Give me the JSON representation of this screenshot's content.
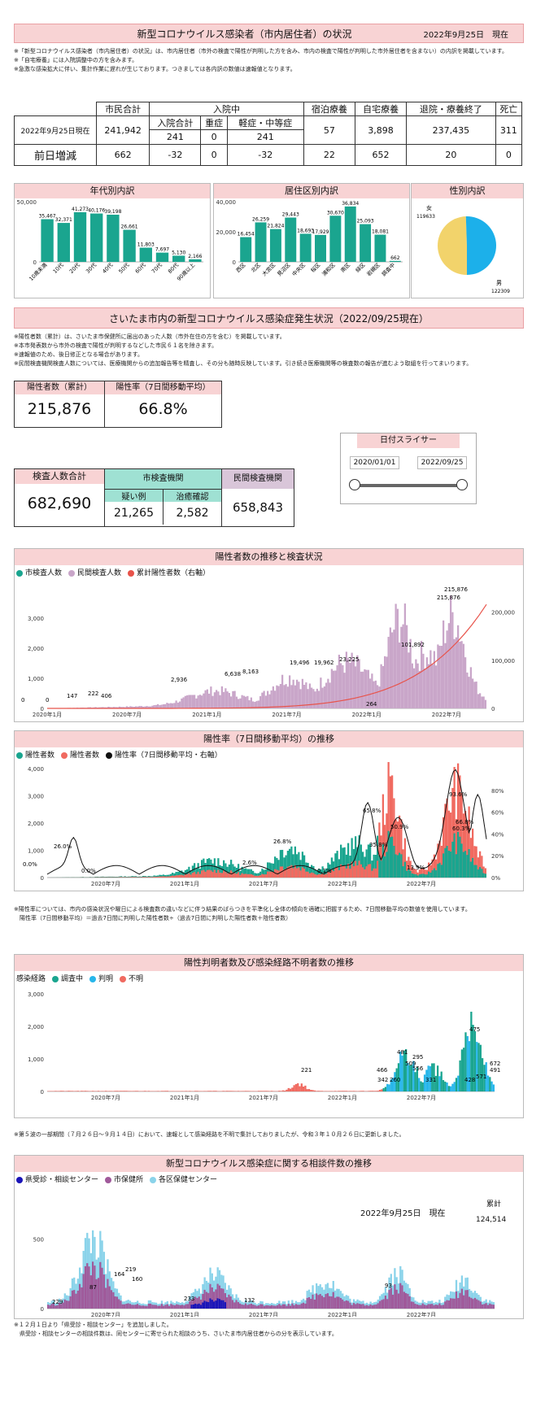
{
  "header": {
    "title": "新型コロナウイルス感染者（市内居住者）の状況",
    "date": "2022年9月25日　現在",
    "notes": [
      "※「新型コロナウイルス感染者（市内居住者）の状況」は、市内居住者（市外の検査で陽性が判明した方を含み、市内の検査で陽性が判明した市外居住者を含まない）の内訳を掲載しています。",
      "※「自宅療養」には入院調整中の方を含みます。",
      "※急激な感染拡大に伴い、集計作業に遅れが生じております。つきましては各内訳の数値は速報値となります。"
    ]
  },
  "stats": {
    "headers": {
      "citizen_total": "市民合計",
      "hospitalized": "入院中",
      "hosp_total": "入院合計",
      "severe": "重症",
      "mild": "軽症・中等症",
      "hotel": "宿泊療養",
      "home": "自宅療養",
      "discharged": "退院・療養終了",
      "death": "死亡"
    },
    "row_label": "2022年9月25日現在",
    "row_values": {
      "citizen_total": "241,942",
      "hosp_total": "241",
      "severe": "0",
      "mild": "241",
      "hotel": "57",
      "home": "3,898",
      "discharged": "237,435",
      "death": "311"
    },
    "diff_label": "前日増減",
    "diff_values": {
      "citizen_total": "662",
      "hosp_total": "-32",
      "severe": "0",
      "mild": "-32",
      "hotel": "22",
      "home": "652",
      "discharged": "20",
      "death": "0"
    }
  },
  "age_panel": {
    "title": "年代別内訳",
    "yticks": [
      "50,000",
      "0"
    ]
  },
  "ward_panel": {
    "title": "居住区別内訳",
    "yticks": [
      "40,000",
      "20,000",
      "0"
    ]
  },
  "gender_panel": {
    "title": "性別内訳",
    "female_label": "女",
    "female_value": "119633",
    "male_label": "男",
    "male_value": "122309"
  },
  "section2": {
    "title": "さいたま市内の新型コロナウイルス感染症発生状況（2022/09/25現在）",
    "notes": [
      "※陽性者数（累計）は、さいたま市保健所に届出のあった人数（市外在住の方を含む）を掲載しています。",
      "※本市発表数から市外の検査で陽性が判明するなどした市民６１名を除きます。",
      "※速報値のため、後日修正となる場合があります。",
      "※民間検査機関検査人数については、医療機関からの追加報告等を精査し、その分も随時反映しています。引き続き医療機関等の検査数の報告が進むよう取組を行ってまいります。"
    ]
  },
  "kpi": {
    "positives_label": "陽性者数（累計）",
    "positives": "215,876",
    "rate_label": "陽性率（7日間移動平均）",
    "rate": "66.8%",
    "tests_label": "検査人数合計",
    "tests": "682,690",
    "city_label": "市検査機関",
    "suspect_label": "疑い例",
    "suspect": "21,265",
    "confirm_label": "治癒確認",
    "confirm": "2,582",
    "private_label": "民間検査機関",
    "private": "658,843"
  },
  "slider": {
    "title": "日付スライサー",
    "start": "2020/01/01",
    "end": "2022/09/25"
  },
  "chart1_header": {
    "title": "陽性者数の推移と検査状況",
    "legend": [
      "市検査人数",
      "民間検査人数",
      "累計陽性者数（右軸）"
    ]
  },
  "chart2_header": {
    "title": "陽性率（7日間移動平均）の推移",
    "legend": [
      "陽性者数",
      "陽性者数",
      "陽性率（7日間移動平均・右軸）"
    ]
  },
  "chart2_notes": [
    "※陽性率については、市内の感染状況や曜日による検査数の違いなどに伴う結果のばらつきを平準化し全体の傾向を適確に把握するため、7日間移動平均の数値を使用しています。",
    "　陽性率（7日間移動平均）＝過去7日間に判明した陽性者数÷（過去7日間に判明した陽性者数＋陰性者数）"
  ],
  "chart3_header": {
    "title": "陽性判明者数及び感染経路不明者数の推移",
    "legend_prefix": "感染経路",
    "legend": [
      "調査中",
      "判明",
      "不明"
    ]
  },
  "chart3_notes": [
    "※第５波の一部期間（７月２６日～９月１４日）において、速報として感染経路を不明で集計しておりましたが、令和３年１０月２６日に更新しました。"
  ],
  "chart4_header": {
    "title": "新型コロナウイルス感染症に関する相談件数の推移",
    "legend": [
      "県受診・相談センター",
      "市保健所",
      "各区保健センター"
    ],
    "date": "2022年9月25日　現在",
    "total_label": "累計",
    "total": "124,514"
  },
  "chart4_notes": [
    "※１２月１日より「県受診・相談センター」を追加しました。",
    "　県受診・相談センターの相談件数は、同センターに寄せられた相談のうち、さいたま市内居住者からの分を表示しています。"
  ],
  "chart_data": [
    {
      "type": "bar",
      "title": "年代別内訳",
      "categories": [
        "10歳未満",
        "10代",
        "20代",
        "30代",
        "40代",
        "50代",
        "60代",
        "70代",
        "80代",
        "90歳以上"
      ],
      "values": [
        35467,
        32371,
        41273,
        40176,
        39198,
        26661,
        11803,
        7697,
        5130,
        2166
      ],
      "ylim": [
        0,
        50000
      ],
      "color": "#1aa58f",
      "category_labels": [
        "10歳未満",
        "10代",
        "20代",
        "30代",
        "40代",
        "50代",
        "60代",
        "70代",
        "80代",
        "90歳以上"
      ]
    },
    {
      "type": "bar",
      "title": "居住区別内訳",
      "categories": [
        "西区",
        "北区",
        "大宮区",
        "見沼区",
        "中央区",
        "桜区",
        "浦和区",
        "南区",
        "緑区",
        "岩槻区",
        "調査中"
      ],
      "values": [
        16454,
        26259,
        21824,
        29443,
        18693,
        17929,
        30670,
        36834,
        25093,
        18081,
        662
      ],
      "ylim": [
        0,
        40000
      ],
      "color": "#1aa58f"
    },
    {
      "type": "pie",
      "title": "性別内訳",
      "categories": [
        "女",
        "男"
      ],
      "values": [
        119633,
        122309
      ],
      "colors": [
        "#f2d36b",
        "#1cb0ea"
      ]
    },
    {
      "type": "bar",
      "title": "陽性者数の推移と検査状況",
      "x_ticks": [
        "2020年1月",
        "2020年7月",
        "2021年1月",
        "2021年7月",
        "2022年1月",
        "2022年7月"
      ],
      "y_left": [
        0,
        1000,
        2000,
        3000,
        4000
      ],
      "y_right": [
        0,
        100000,
        200000
      ],
      "y_left_ticks": [
        "0",
        "1,000",
        "2,000",
        "3,000"
      ],
      "y_right_ticks": [
        "0",
        "100,000",
        "200,000"
      ],
      "series": [
        {
          "name": "市検査人数",
          "color": "#1aa58f"
        },
        {
          "name": "民間検査人数",
          "color": "#c9a6c9"
        },
        {
          "name": "累計陽性者数（右軸）",
          "color": "#e8534a",
          "cumulative_labels": [
            "0",
            "0",
            "147",
            "222",
            "406",
            "2,936",
            "6,638",
            "8,163",
            "19,496",
            "19,962",
            "23,225",
            "264",
            "101,892",
            "215,876",
            "215,876"
          ]
        }
      ]
    },
    {
      "type": "bar",
      "title": "陽性率（7日間移動平均）の推移",
      "x_ticks": [
        "2020年7月",
        "2021年1月",
        "2021年7月",
        "2022年1月",
        "2022年7月"
      ],
      "y_left_ticks": [
        "0",
        "1,000",
        "2,000",
        "3,000",
        "4,000"
      ],
      "y_right_ticks": [
        "0%",
        "20%",
        "40%",
        "60%",
        "80%"
      ],
      "rate_labels": [
        "0.0%",
        "26.0%",
        "0.0%",
        "2.6%",
        "26.8%",
        "0.1%",
        "65.8%",
        "50.9%",
        "35.8%",
        "13.9%",
        "93.6%",
        "66.8%",
        "60.3%"
      ]
    },
    {
      "type": "bar",
      "title": "陽性判明者数及び感染経路不明者数の推移",
      "x_ticks": [
        "2020年7月",
        "2021年1月",
        "2021年7月",
        "2022年1月",
        "2022年7月"
      ],
      "y_left_ticks": [
        "0",
        "1,000",
        "2,000",
        "3,000"
      ],
      "labels": [
        "221",
        "466",
        "342",
        "260",
        "481",
        "509",
        "295",
        "556",
        "331",
        "428",
        "571",
        "475",
        "672",
        "491"
      ]
    },
    {
      "type": "bar",
      "title": "新型コロナウイルス感染症に関する相談件数の推移",
      "x_ticks": [
        "2020年7月",
        "2021年1月",
        "2021年7月",
        "2022年1月",
        "2022年7月"
      ],
      "y_left_ticks": [
        "0",
        "500"
      ],
      "labels": [
        "229",
        "87",
        "164",
        "219",
        "160",
        "233",
        "132",
        "93"
      ]
    }
  ]
}
